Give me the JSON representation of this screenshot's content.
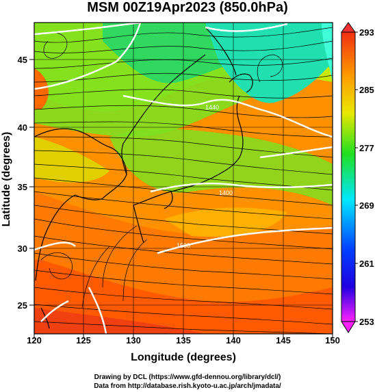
{
  "title": "MSM 00Z19Apr2023 (850.0hPa)",
  "xlabel": "Longitude (degrees)",
  "ylabel": "Latitude  (degrees)",
  "x_ticks": [
    "120",
    "125",
    "130",
    "135",
    "140",
    "145",
    "150"
  ],
  "y_ticks": [
    "25",
    "30",
    "35",
    "40",
    "45"
  ],
  "colorbar_ticks": [
    "293",
    "285",
    "277",
    "269",
    "261",
    "253"
  ],
  "contour_labels": [
    "1440",
    "1500",
    "1400"
  ],
  "credits": {
    "line1": "Drawing by DCL (https://www.gfd-dennou.org/library/dcl/)",
    "line2": "Data from http://database.rish.kyoto-u.ac.jp/arch/jmadata/"
  },
  "colors": {
    "warm": "#f04a10",
    "orange": "#ff9a00",
    "yellow": "#e8e800",
    "green": "#30d830",
    "cyan": "#00e8e8",
    "blue": "#0010e8",
    "magenta": "#ff20ff"
  },
  "map_extent": {
    "lon": [
      120,
      150
    ],
    "lat": [
      22.5,
      48
    ]
  }
}
